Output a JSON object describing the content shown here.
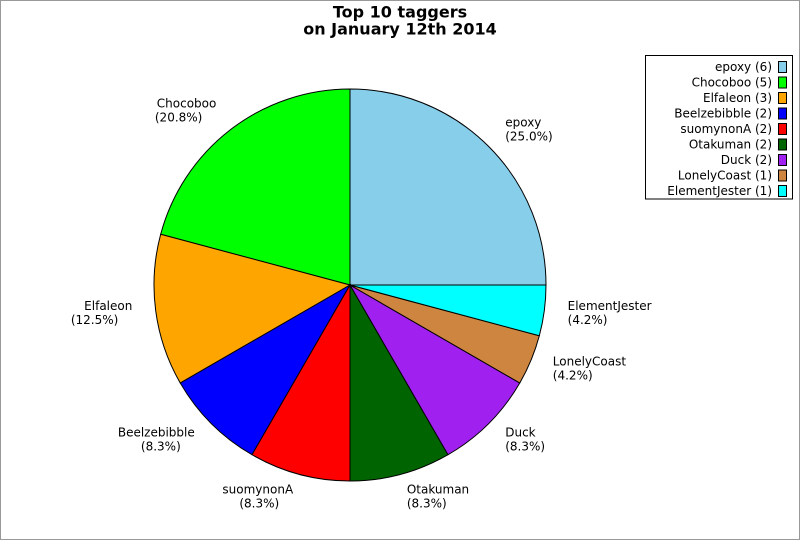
{
  "chart_data": {
    "type": "pie",
    "title": [
      "Top 10 taggers",
      "on January 12th 2014"
    ],
    "categories": [
      "epoxy",
      "Chocoboo",
      "Elfaleon",
      "Beelzebibble",
      "suomynonA",
      "Otakuman",
      "Duck",
      "LonelyCoast",
      "ElementJester"
    ],
    "values": [
      6,
      5,
      3,
      2,
      2,
      2,
      2,
      1,
      1
    ],
    "value_labels": [
      "(6)",
      "(5)",
      "(3)",
      "(2)",
      "(2)",
      "(2)",
      "(2)",
      "(1)",
      "(1)"
    ],
    "percent_labels": [
      "(25.0%)",
      "(20.8%)",
      "(12.5%)",
      "(8.3%)",
      "(8.3%)",
      "(8.3%)",
      "(8.3%)",
      "(4.2%)",
      "(4.2%)"
    ],
    "colors": [
      "#87ceeb",
      "#00ff00",
      "#ffa500",
      "#0000ff",
      "#ff0000",
      "#006400",
      "#a020f0",
      "#cd853f",
      "#00ffff"
    ],
    "legend": "top-right"
  }
}
